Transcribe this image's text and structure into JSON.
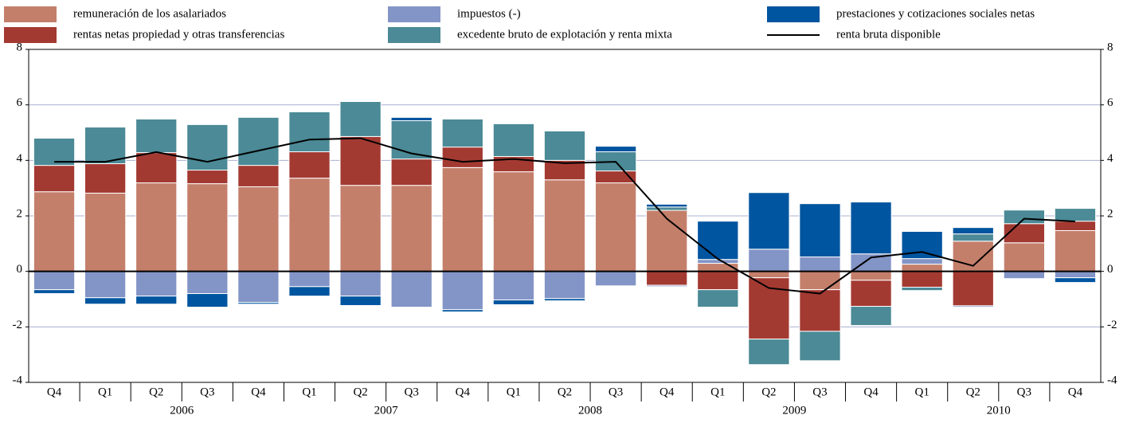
{
  "chart_data": {
    "type": "bar",
    "stacked": true,
    "categories": [
      "Q4",
      "Q1",
      "Q2",
      "Q3",
      "Q4",
      "Q1",
      "Q2",
      "Q3",
      "Q4",
      "Q1",
      "Q2",
      "Q3",
      "Q4",
      "Q1",
      "Q2",
      "Q3",
      "Q4",
      "Q1",
      "Q2",
      "Q3",
      "Q4"
    ],
    "year_groups": [
      {
        "label": "2006",
        "from": 1,
        "to": 4
      },
      {
        "label": "2007",
        "from": 5,
        "to": 8
      },
      {
        "label": "2008",
        "from": 9,
        "to": 12
      },
      {
        "label": "2009",
        "from": 13,
        "to": 16
      },
      {
        "label": "2010",
        "from": 17,
        "to": 20
      }
    ],
    "series": [
      {
        "name": "remuneración de los asalariados",
        "color": "#c47f6b",
        "values": [
          2.87,
          2.82,
          3.19,
          3.16,
          3.05,
          3.36,
          3.1,
          3.1,
          3.74,
          3.59,
          3.3,
          3.19,
          2.2,
          0.29,
          -0.23,
          -0.66,
          -0.32,
          0.26,
          1.09,
          1.03,
          1.47
        ]
      },
      {
        "name": "rentas netas propiedad y otras transferencias",
        "color": "#a33a32",
        "values": [
          0.95,
          1.06,
          1.09,
          0.49,
          0.77,
          0.95,
          1.76,
          0.95,
          0.74,
          0.55,
          0.7,
          0.43,
          -0.5,
          -0.66,
          -2.21,
          -1.5,
          -0.94,
          -0.57,
          -1.24,
          0.69,
          0.34
        ]
      },
      {
        "name": "impuestos (-)",
        "color": "#8394c6",
        "values": [
          -0.66,
          -0.95,
          -0.89,
          -0.8,
          -1.12,
          -0.55,
          -0.89,
          -1.29,
          -1.38,
          -1.03,
          -0.98,
          -0.52,
          -0.05,
          0.14,
          0.8,
          0.52,
          0.63,
          0.2,
          -0.05,
          -0.26,
          -0.23
        ]
      },
      {
        "name": "excedente bruto de explotación y renta mixta",
        "color": "#4b8a96",
        "values": [
          0.98,
          1.32,
          1.21,
          1.64,
          1.73,
          1.44,
          1.26,
          1.38,
          1.01,
          1.18,
          1.06,
          0.69,
          0.12,
          -0.63,
          -0.92,
          -1.06,
          -0.69,
          -0.12,
          0.26,
          0.49,
          0.46
        ]
      },
      {
        "name": "prestaciones y cotizaciones sociales netas",
        "color": "#0055a0",
        "values": [
          -0.14,
          -0.23,
          -0.29,
          -0.49,
          -0.06,
          -0.34,
          -0.34,
          0.12,
          -0.08,
          -0.17,
          -0.08,
          0.2,
          0.1,
          1.38,
          2.04,
          1.92,
          1.87,
          0.98,
          0.23,
          0,
          -0.17
        ]
      },
      {
        "name": "renta bruta disponible",
        "color": "#000000",
        "type": "line",
        "values": [
          3.95,
          3.95,
          4.3,
          3.95,
          4.35,
          4.75,
          4.8,
          4.25,
          3.95,
          4.05,
          3.9,
          3.95,
          1.9,
          0.45,
          -0.6,
          -0.8,
          0.5,
          0.7,
          0.2,
          1.9,
          1.8
        ]
      }
    ],
    "ylim": [
      -4,
      8
    ],
    "yticks": [
      -4,
      -2,
      0,
      2,
      4,
      6,
      8
    ],
    "y2lim": [
      -4,
      8
    ],
    "y2ticks": [
      -4,
      -2,
      0,
      2,
      4,
      6,
      8
    ],
    "grid": true
  }
}
